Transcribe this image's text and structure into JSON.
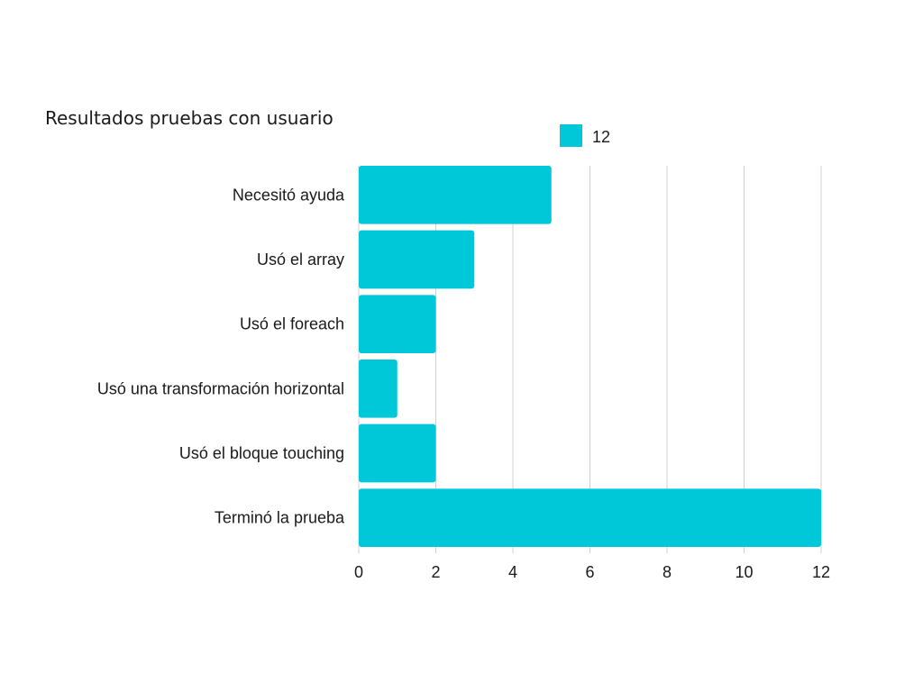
{
  "chart_data": {
    "type": "bar",
    "orientation": "horizontal",
    "title": "Resultados pruebas con usuario",
    "xlabel": "",
    "ylabel": "",
    "categories": [
      "Necesitó ayuda",
      "Usó el array",
      "Usó el foreach",
      "Usó una transformación horizontal",
      "Usó el bloque touching",
      "Terminó la prueba"
    ],
    "series": [
      {
        "name": "12",
        "values": [
          5,
          3,
          2,
          1,
          2,
          12
        ],
        "color": "#00c8d8"
      }
    ],
    "xlim": [
      0,
      12
    ],
    "xticks": [
      0,
      2,
      4,
      6,
      8,
      10,
      12
    ],
    "grid": true,
    "legend_position": "top"
  }
}
